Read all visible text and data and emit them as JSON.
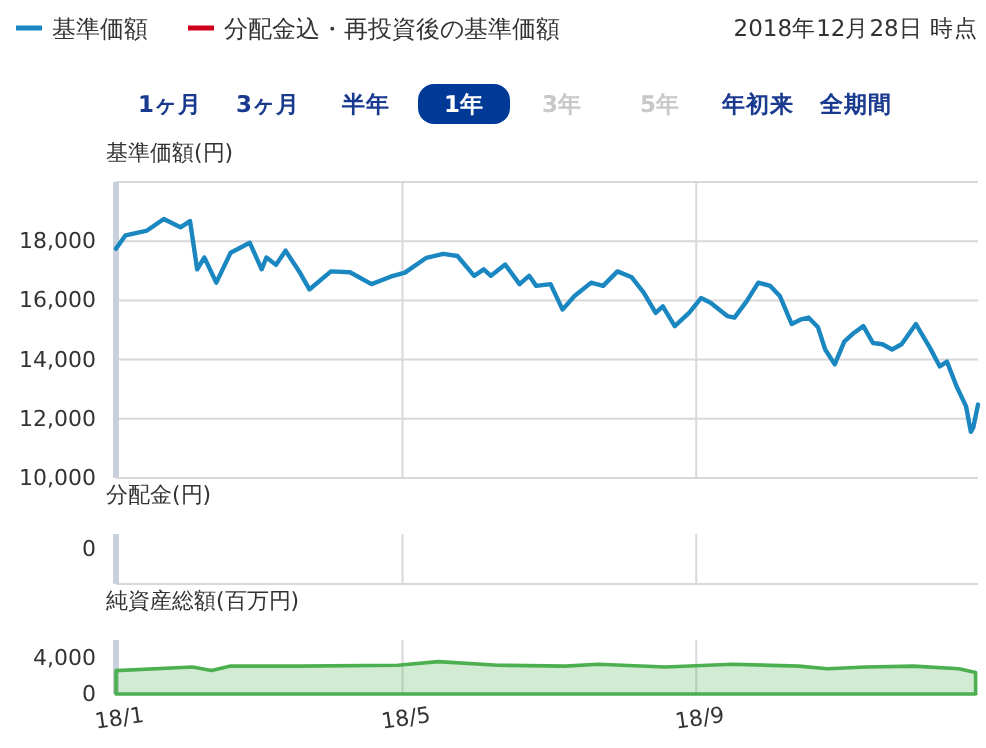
{
  "chart_data": [
    {
      "type": "line",
      "ylabel": "基準価額(円)",
      "legend": "top left",
      "grid": true,
      "tick_labels": "y",
      "annotations": [
        "2018年12月28日 時点",
        "1ヶ月",
        "3ヶ月",
        "半年",
        "1年",
        "3年",
        "5年",
        "年初来",
        "全期間"
      ],
      "xlim": [
        "2018-01-01",
        "2018-12-28"
      ],
      "xticks": [
        {
          "value": "2018-01-01",
          "label": null
        },
        {
          "value": "2018-05-01",
          "label": null
        },
        {
          "value": "2018-09-01",
          "label": null
        }
      ],
      "ylim": [
        10000,
        20000
      ],
      "yticks": [
        {
          "value": 10000,
          "label": "10,000"
        },
        {
          "value": 12000,
          "label": "12,000"
        },
        {
          "value": 14000,
          "label": "14,000"
        },
        {
          "value": 16000,
          "label": "16,000"
        },
        {
          "value": 18000,
          "label": "18,000"
        },
        {
          "value": 20000,
          "label": null
        }
      ],
      "x": [
        "2018-01-01",
        "2018-01-05",
        "2018-01-14",
        "2018-01-21",
        "2018-01-28",
        "2018-02-01",
        "2018-02-04",
        "2018-02-07",
        "2018-02-12",
        "2018-02-18",
        "2018-02-26",
        "2018-03-03",
        "2018-03-05",
        "2018-03-09",
        "2018-03-13",
        "2018-03-19",
        "2018-03-23",
        "2018-04-01",
        "2018-04-09",
        "2018-04-18",
        "2018-04-26",
        "2018-05-02",
        "2018-05-11",
        "2018-05-18",
        "2018-05-24",
        "2018-05-31",
        "2018-06-04",
        "2018-06-07",
        "2018-06-13",
        "2018-06-19",
        "2018-06-23",
        "2018-06-26",
        "2018-07-02",
        "2018-07-07",
        "2018-07-12",
        "2018-07-19",
        "2018-07-24",
        "2018-07-30",
        "2018-08-05",
        "2018-08-10",
        "2018-08-15",
        "2018-08-18",
        "2018-08-23",
        "2018-08-29",
        "2018-09-03",
        "2018-09-07",
        "2018-09-14",
        "2018-09-17",
        "2018-09-22",
        "2018-09-27",
        "2018-10-02",
        "2018-10-06",
        "2018-10-11",
        "2018-10-15",
        "2018-10-18",
        "2018-10-22",
        "2018-10-25",
        "2018-10-29",
        "2018-11-02",
        "2018-11-06",
        "2018-11-10",
        "2018-11-14",
        "2018-11-18",
        "2018-11-22",
        "2018-11-26",
        "2018-12-02",
        "2018-12-08",
        "2018-12-12",
        "2018-12-15",
        "2018-12-19",
        "2018-12-23",
        "2018-12-25",
        "2018-12-26",
        "2018-12-28"
      ],
      "series": [
        {
          "name": "基準価額",
          "color": "#1a87c0",
          "values": [
            17750,
            18200,
            18360,
            18750,
            18470,
            18680,
            17050,
            17450,
            16600,
            17610,
            17950,
            17050,
            17450,
            17200,
            17680,
            16940,
            16370,
            16980,
            16950,
            16550,
            16800,
            16940,
            17440,
            17570,
            17500,
            16830,
            17050,
            16830,
            17210,
            16550,
            16830,
            16490,
            16550,
            15690,
            16150,
            16600,
            16490,
            16980,
            16780,
            16260,
            15580,
            15800,
            15130,
            15580,
            16080,
            15920,
            15470,
            15420,
            15960,
            16600,
            16490,
            16150,
            15200,
            15360,
            15420,
            15090,
            14340,
            13840,
            14610,
            14900,
            15130,
            14560,
            14520,
            14340,
            14520,
            15200,
            14380,
            13770,
            13930,
            13100,
            12420,
            11560,
            11700,
            12480
          ]
        },
        {
          "name": "分配金込・再投資後の基準価額",
          "color": "#d0021b",
          "values": [
            null,
            null,
            null,
            null,
            null,
            null,
            null,
            null,
            null,
            null,
            null,
            null,
            null,
            null,
            null,
            null,
            null,
            null,
            null,
            null,
            null,
            null,
            null,
            null,
            null,
            null,
            null,
            null,
            null,
            null,
            null,
            null,
            null,
            null,
            null,
            null,
            null,
            null,
            null,
            null,
            null,
            null,
            null,
            null,
            null,
            null,
            null,
            null,
            null,
            null,
            null,
            null,
            null,
            null,
            null,
            null,
            null,
            null,
            null,
            null,
            null,
            null,
            null,
            null,
            null,
            null,
            null,
            null,
            null,
            null,
            null,
            null,
            null,
            null
          ]
        }
      ]
    },
    {
      "type": "other",
      "ylabel": "分配金(円)",
      "annotations": [
        "0"
      ]
    },
    {
      "type": "area",
      "ylabel": "純資産総額(百万円)",
      "grid": "x",
      "xlim": [
        "2018-01-01",
        "2018-12-28"
      ],
      "xticks": [
        {
          "value": "2018-01-01",
          "label": "18/1"
        },
        {
          "value": "2018-05-01",
          "label": "18/5"
        },
        {
          "value": "2018-09-01",
          "label": "18/9"
        }
      ],
      "ylim": [
        0,
        6000
      ],
      "yticks": [
        0,
        {
          "value": 4000,
          "label": "4,000"
        }
      ],
      "x": [
        "2018-01-01",
        "2018-02-02",
        "2018-02-10",
        "2018-02-18",
        "2018-03-18",
        "2018-04-29",
        "2018-05-16",
        "2018-06-10",
        "2018-07-08",
        "2018-07-22",
        "2018-08-19",
        "2018-09-16",
        "2018-10-14",
        "2018-10-26",
        "2018-11-11",
        "2018-12-01",
        "2018-12-20",
        "2018-12-27"
      ],
      "series": [
        {
          "color": "#4caf50",
          "values": [
            2600,
            3000,
            2600,
            3100,
            3100,
            3200,
            3600,
            3200,
            3100,
            3300,
            3000,
            3300,
            3100,
            2800,
            3000,
            3100,
            2800,
            2400
          ]
        }
      ]
    }
  ]
}
